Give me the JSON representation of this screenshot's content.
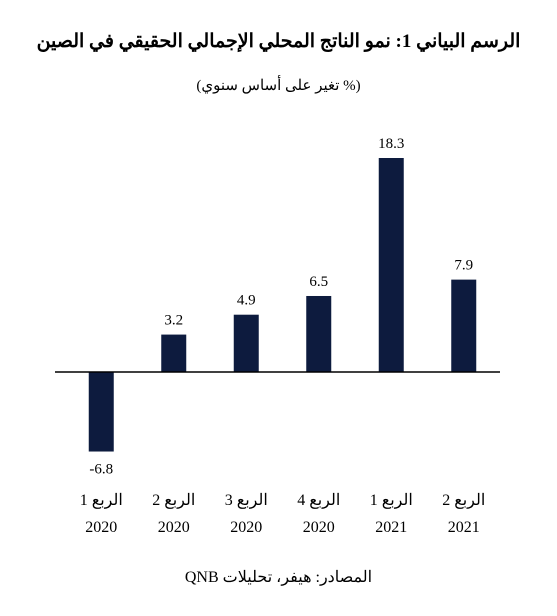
{
  "page": {
    "title": "الرسم البياني 1: نمو الناتج المحلي الإجمالي الحقيقي في الصين",
    "subtitle": "(% تغير على أساس سنوي)",
    "source": "المصادر: هيفر، تحليلات QNB"
  },
  "chart_data": {
    "type": "bar",
    "title": "الرسم البياني 1: نمو الناتج المحلي الإجمالي الحقيقي في الصين",
    "subtitle": "(% تغير على أساس سنوي)",
    "categories": [
      [
        "الربع 1",
        "2020"
      ],
      [
        "الربع 2",
        "2020"
      ],
      [
        "الربع 3",
        "2020"
      ],
      [
        "الربع 4",
        "2020"
      ],
      [
        "الربع 1",
        "2021"
      ],
      [
        "الربع 2",
        "2021"
      ]
    ],
    "values": [
      -6.8,
      3.2,
      4.9,
      6.5,
      18.3,
      7.9
    ],
    "data_labels": [
      "-6.8",
      "3.2",
      "4.9",
      "6.5",
      "18.3",
      "7.9"
    ],
    "bar_color": "#0d1b3e",
    "axis_color": "#000000",
    "ylim": [
      -6.8,
      18.3
    ],
    "grid": false,
    "legend": "none"
  }
}
